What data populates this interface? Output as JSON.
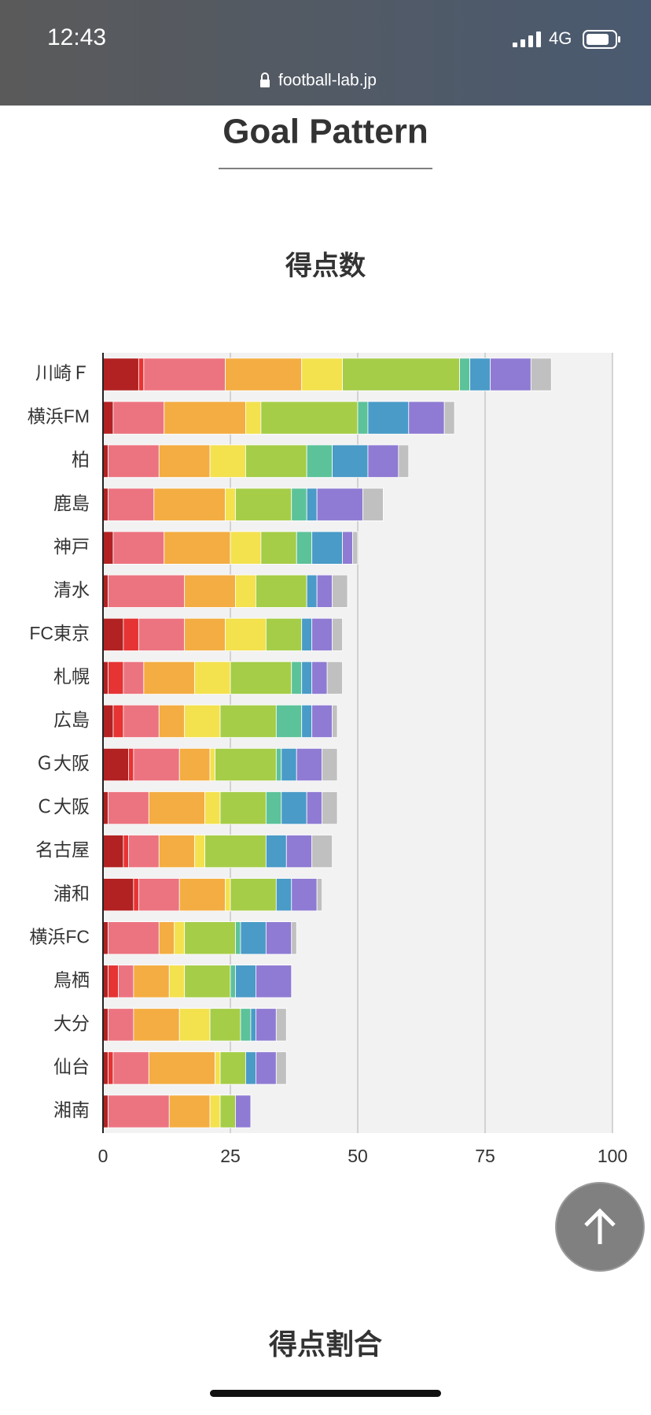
{
  "status_bar": {
    "time": "12:43",
    "network": "4G"
  },
  "url": "football-lab.jp",
  "header": {
    "title": "Goal Pattern"
  },
  "chart_data": {
    "type": "bar",
    "orientation": "horizontal",
    "stacked": true,
    "title": "得点数",
    "categories": [
      "川崎Ｆ",
      "横浜FM",
      "柏",
      "鹿島",
      "神戸",
      "清水",
      "FC東京",
      "札幌",
      "広島",
      "Ｇ大阪",
      "Ｃ大阪",
      "名古屋",
      "浦和",
      "横浜FC",
      "鳥栖",
      "大分",
      "仙台",
      "湘南"
    ],
    "series": [
      {
        "color": "#b22222",
        "values": [
          7,
          2,
          1,
          1,
          2,
          1,
          4,
          1,
          2,
          5,
          1,
          4,
          6,
          1,
          1,
          1,
          1,
          1
        ]
      },
      {
        "color": "#e63333",
        "values": [
          1,
          0,
          0,
          0,
          0,
          0,
          3,
          3,
          2,
          1,
          0,
          1,
          1,
          0,
          2,
          0,
          1,
          0
        ]
      },
      {
        "color": "#ec7480",
        "values": [
          16,
          10,
          10,
          9,
          10,
          15,
          9,
          4,
          7,
          9,
          8,
          6,
          8,
          10,
          3,
          5,
          7,
          12
        ]
      },
      {
        "color": "#f4ad42",
        "values": [
          15,
          16,
          10,
          14,
          13,
          10,
          8,
          10,
          5,
          6,
          11,
          7,
          9,
          3,
          7,
          9,
          13,
          8
        ]
      },
      {
        "color": "#f3e14e",
        "values": [
          8,
          3,
          7,
          2,
          6,
          4,
          8,
          7,
          7,
          1,
          3,
          2,
          1,
          2,
          3,
          6,
          1,
          2
        ]
      },
      {
        "color": "#a5cd48",
        "values": [
          23,
          19,
          12,
          11,
          7,
          10,
          7,
          12,
          11,
          12,
          9,
          12,
          9,
          10,
          9,
          6,
          5,
          3
        ]
      },
      {
        "color": "#5cc29a",
        "values": [
          2,
          2,
          5,
          3,
          3,
          0,
          0,
          2,
          5,
          1,
          3,
          0,
          0,
          1,
          1,
          2,
          0,
          0
        ]
      },
      {
        "color": "#4a9bc7",
        "values": [
          4,
          8,
          7,
          2,
          6,
          2,
          2,
          2,
          2,
          3,
          5,
          4,
          3,
          5,
          4,
          1,
          2,
          0
        ]
      },
      {
        "color": "#8f7bd3",
        "values": [
          8,
          7,
          6,
          9,
          2,
          3,
          4,
          3,
          4,
          5,
          3,
          5,
          5,
          5,
          7,
          4,
          4,
          3
        ]
      },
      {
        "color": "#c0c0c0",
        "values": [
          4,
          2,
          2,
          4,
          1,
          3,
          2,
          3,
          1,
          3,
          3,
          4,
          1,
          1,
          0,
          2,
          2,
          0
        ]
      }
    ],
    "xlim": [
      0,
      100
    ],
    "xticks": [
      0,
      25,
      50,
      75,
      100
    ],
    "grid": true
  },
  "next_section": {
    "title": "得点割合"
  }
}
